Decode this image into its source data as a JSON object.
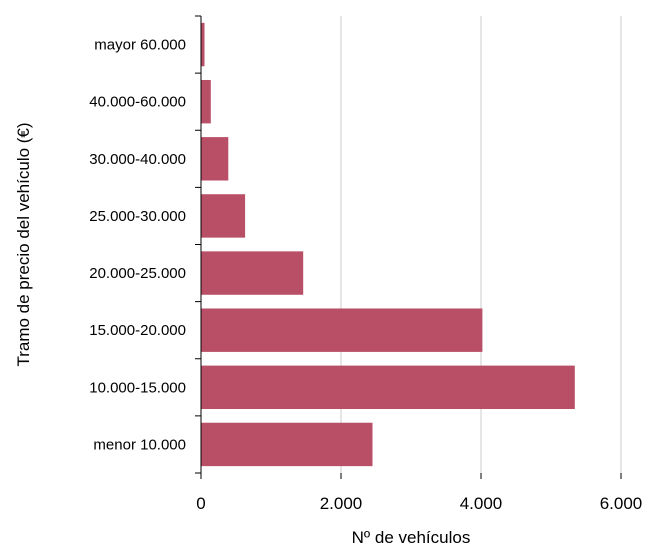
{
  "chart_data": {
    "type": "bar",
    "orientation": "horizontal",
    "title": "",
    "xlabel": "Nº de vehículos",
    "ylabel": "Tramo de precio del vehículo (€)",
    "categories": [
      "menor 10.000",
      "10.000-15.000",
      "15.000-20.000",
      "20.000-25.000",
      "25.000-30.000",
      "30.000-40.000",
      "40.000-60.000",
      "mayor 60.000"
    ],
    "values": [
      2450,
      5340,
      4020,
      1460,
      630,
      390,
      140,
      50
    ],
    "xlim": [
      0,
      6000
    ],
    "xticks": [
      0,
      2000,
      4000,
      6000
    ],
    "xtick_labels": [
      "0",
      "2.000",
      "4.000",
      "6.000"
    ],
    "grid": "vertical",
    "legend": "none",
    "bar_color": "#b94f66",
    "grid_color": "#cccccc"
  }
}
